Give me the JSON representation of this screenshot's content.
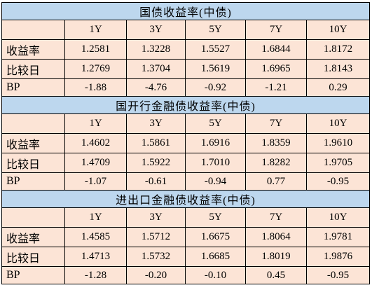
{
  "sections": [
    {
      "title": "国债收益率(中债)",
      "columns": [
        "1Y",
        "3Y",
        "5Y",
        "7Y",
        "10Y"
      ],
      "rows": [
        [
          "收益率",
          "1.2581",
          "1.3228",
          "1.5527",
          "1.6844",
          "1.8172"
        ],
        [
          "比较日",
          "1.2769",
          "1.3704",
          "1.5619",
          "1.6965",
          "1.8143"
        ],
        [
          "BP",
          "-1.88",
          "-4.76",
          "-0.92",
          "-1.21",
          "0.29"
        ]
      ]
    },
    {
      "title": "国开行金融债收益率(中债)",
      "columns": [
        "1Y",
        "3Y",
        "5Y",
        "7Y",
        "10Y"
      ],
      "rows": [
        [
          "收益率",
          "1.4602",
          "1.5861",
          "1.6916",
          "1.8359",
          "1.9610"
        ],
        [
          "比较日",
          "1.4709",
          "1.5922",
          "1.7010",
          "1.8282",
          "1.9705"
        ],
        [
          "BP",
          "-1.07",
          "-0.61",
          "-0.94",
          "0.77",
          "-0.95"
        ]
      ]
    },
    {
      "title": "进出口金融债收益率(中债)",
      "columns": [
        "1Y",
        "3Y",
        "5Y",
        "7Y",
        "10Y"
      ],
      "rows": [
        [
          "收益率",
          "1.4585",
          "1.5712",
          "1.6675",
          "1.8064",
          "1.9781"
        ],
        [
          "比较日",
          "1.4713",
          "1.5732",
          "1.6685",
          "1.8019",
          "1.9876"
        ],
        [
          "BP",
          "-1.28",
          "-0.20",
          "-0.10",
          "0.45",
          "-0.95"
        ]
      ]
    }
  ]
}
